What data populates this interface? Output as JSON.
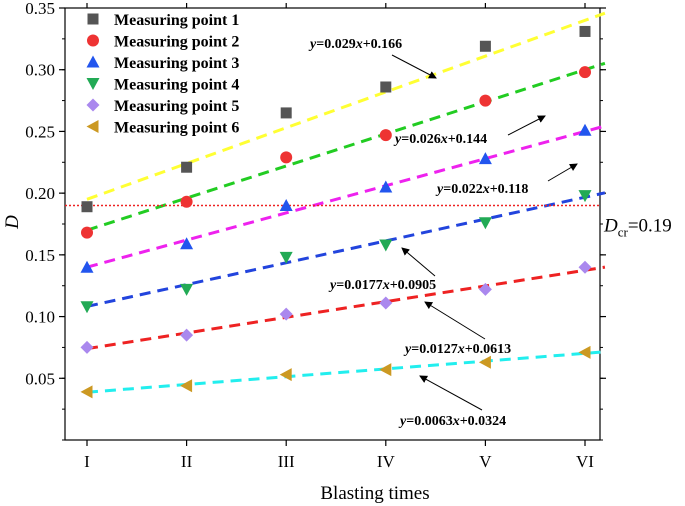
{
  "chart_data": {
    "type": "scatter",
    "xlabel": "Blasting times",
    "ylabel": "D",
    "categories": [
      "I",
      "II",
      "III",
      "IV",
      "V",
      "VI"
    ],
    "ylim": [
      0.0,
      0.35
    ],
    "yticks": [
      "0.05",
      "0.10",
      "0.15",
      "0.20",
      "0.25",
      "0.30",
      "0.35"
    ],
    "ytick_values": [
      0.05,
      0.1,
      0.15,
      0.2,
      0.25,
      0.3,
      0.35
    ],
    "legend_position": "top-left",
    "series": [
      {
        "name": "Measuring point 1",
        "marker": "square",
        "color": "#555555",
        "line_color": "#ffff33",
        "values": [
          0.189,
          0.221,
          0.265,
          0.286,
          0.319,
          0.331
        ],
        "equation": "y=0.029x+0.166",
        "slope": 0.029,
        "intercept": 0.166
      },
      {
        "name": "Measuring point 2",
        "marker": "circle",
        "color": "#ee3333",
        "line_color": "#22cc22",
        "values": [
          0.168,
          0.193,
          0.229,
          0.247,
          0.275,
          0.298
        ],
        "equation": "y=0.026x+0.144",
        "slope": 0.026,
        "intercept": 0.144
      },
      {
        "name": "Measuring point 3",
        "marker": "triangle-up",
        "color": "#2255ee",
        "line_color": "#ee22ee",
        "values": [
          0.14,
          0.159,
          0.19,
          0.205,
          0.228,
          0.251
        ],
        "equation": "y=0.022x+0.118",
        "slope": 0.022,
        "intercept": 0.118
      },
      {
        "name": "Measuring point 4",
        "marker": "triangle-down",
        "color": "#22aa55",
        "line_color": "#2244dd",
        "values": [
          0.108,
          0.122,
          0.148,
          0.158,
          0.176,
          0.198
        ],
        "equation": "y=0.0177x+0.0905",
        "slope": 0.0177,
        "intercept": 0.0905
      },
      {
        "name": "Measuring point 5",
        "marker": "diamond",
        "color": "#aa88ee",
        "line_color": "#ee2222",
        "values": [
          0.075,
          0.085,
          0.102,
          0.111,
          0.122,
          0.14
        ],
        "equation": "y=0.0127x+0.0613",
        "slope": 0.0127,
        "intercept": 0.0613
      },
      {
        "name": "Measuring point 6",
        "marker": "triangle-left",
        "color": "#cc9922",
        "line_color": "#22eeee",
        "values": [
          0.039,
          0.044,
          0.053,
          0.057,
          0.063,
          0.071
        ],
        "equation": "y=0.0063x+0.0324",
        "slope": 0.0063,
        "intercept": 0.0324
      }
    ],
    "threshold": {
      "value": 0.19,
      "label_main": "D",
      "label_sub": "cr",
      "label_value": "=0.19",
      "color": "#ee2222"
    }
  }
}
